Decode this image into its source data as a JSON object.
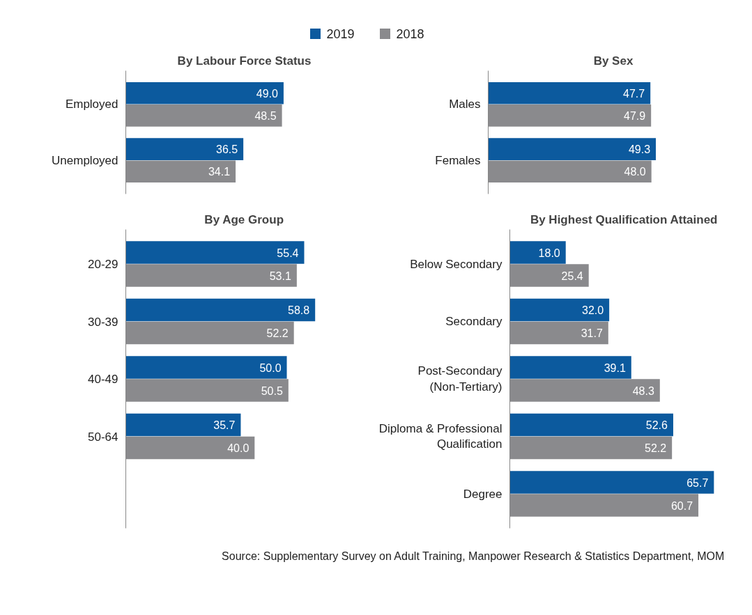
{
  "chart_data": [
    {
      "type": "bar",
      "orientation": "horizontal",
      "title": "By Labour Force Status",
      "categories": [
        "Employed",
        "Unemployed"
      ],
      "series": [
        {
          "name": "2019",
          "color": "#0c5a9e",
          "values": [
            49.0,
            36.5
          ],
          "value_labels": [
            "49.0",
            "36.5"
          ]
        },
        {
          "name": "2018",
          "color": "#8a8a8d",
          "values": [
            48.5,
            34.1
          ],
          "value_labels": [
            "48.5",
            "34.1"
          ]
        }
      ],
      "legend": "top",
      "grid": false,
      "tick_labels": "y"
    },
    {
      "type": "bar",
      "orientation": "horizontal",
      "title": "By Sex",
      "categories": [
        "Males",
        "Females"
      ],
      "series": [
        {
          "color": "#0c5a9e",
          "values": [
            47.7,
            49.3
          ],
          "value_labels": [
            "47.7",
            "49.3"
          ]
        },
        {
          "color": "#8a8a8d",
          "values": [
            47.9,
            48.0
          ],
          "value_labels": [
            "47.9",
            "48.0"
          ]
        }
      ],
      "grid": false,
      "tick_labels": "y"
    },
    {
      "type": "bar",
      "orientation": "horizontal",
      "title": "By Age Group",
      "categories": [
        "20-29",
        "30-39",
        "40-49",
        "50-64"
      ],
      "series": [
        {
          "color": "#0c5a9e",
          "values": [
            55.4,
            58.8,
            50.0,
            35.7
          ],
          "value_labels": [
            "55.4",
            "58.8",
            "50.0",
            "35.7"
          ]
        },
        {
          "color": "#8a8a8d",
          "values": [
            53.1,
            52.2,
            50.5,
            40.0
          ],
          "value_labels": [
            "53.1",
            "52.2",
            "50.5",
            "40.0"
          ]
        }
      ],
      "grid": false,
      "tick_labels": "y"
    },
    {
      "type": "bar",
      "orientation": "horizontal",
      "title": "By Highest Qualification Attained",
      "categories": [
        "Below Secondary",
        "Secondary",
        "Post-Secondary (Non-Tertiary)",
        "Diploma & Professional Qualification",
        "Degree"
      ],
      "series": [
        {
          "color": "#0c5a9e",
          "values": [
            18.0,
            32.0,
            39.1,
            52.6,
            65.7
          ],
          "value_labels": [
            "18.0",
            "32.0",
            "39.1",
            "52.6",
            "65.7"
          ]
        },
        {
          "color": "#8a8a8d",
          "values": [
            25.4,
            31.7,
            48.3,
            52.2,
            60.7
          ],
          "value_labels": [
            "25.4",
            "31.7",
            "48.3",
            "52.2",
            "60.7"
          ]
        }
      ],
      "grid": false,
      "tick_labels": "y",
      "annotations": [
        "Source: Supplementary Survey on Adult Training, Manpower Research & Statistics Department, MOM"
      ]
    }
  ]
}
